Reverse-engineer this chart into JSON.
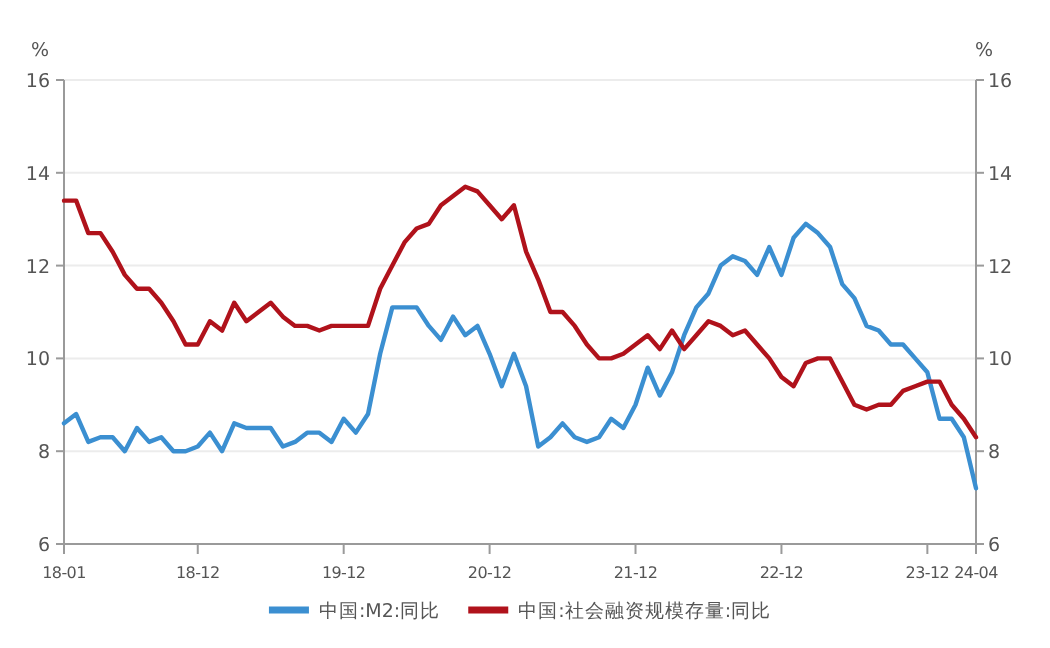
{
  "chart_data": {
    "type": "line",
    "ylabel": "%",
    "y2label": "%",
    "categories": [
      "18-01",
      null,
      null,
      null,
      null,
      null,
      null,
      null,
      null,
      null,
      null,
      "18-12",
      null,
      null,
      null,
      null,
      null,
      null,
      null,
      null,
      null,
      null,
      null,
      "19-12",
      null,
      null,
      null,
      null,
      null,
      null,
      null,
      null,
      null,
      null,
      null,
      "20-12",
      null,
      null,
      null,
      null,
      null,
      null,
      null,
      null,
      null,
      null,
      null,
      "21-12",
      null,
      null,
      null,
      null,
      null,
      null,
      null,
      null,
      null,
      null,
      null,
      "22-12",
      null,
      null,
      null,
      null,
      null,
      null,
      null,
      null,
      null,
      null,
      null,
      "23-12",
      null,
      null,
      null,
      "24-04"
    ],
    "series": [
      {
        "name": "中国:M2:同比",
        "color": "#3b8fd1",
        "values": [
          8.6,
          8.8,
          8.2,
          8.3,
          8.3,
          8.0,
          8.5,
          8.2,
          8.3,
          8.0,
          8.0,
          8.1,
          8.4,
          8.0,
          8.6,
          8.5,
          8.5,
          8.5,
          8.1,
          8.2,
          8.4,
          8.4,
          8.2,
          8.7,
          8.4,
          8.8,
          10.1,
          11.1,
          11.1,
          11.1,
          10.7,
          10.4,
          10.9,
          10.5,
          10.7,
          10.1,
          9.4,
          10.1,
          9.4,
          8.1,
          8.3,
          8.6,
          8.3,
          8.2,
          8.3,
          8.7,
          8.5,
          9.0,
          9.8,
          9.2,
          9.7,
          10.5,
          11.1,
          11.4,
          12.0,
          12.2,
          12.1,
          11.8,
          12.4,
          11.8,
          12.6,
          12.9,
          12.7,
          12.4,
          11.6,
          11.3,
          10.7,
          10.6,
          10.3,
          10.3,
          10.0,
          9.7,
          8.7,
          8.7,
          8.3,
          7.2
        ]
      },
      {
        "name": "中国:社会融资规模存量:同比",
        "color": "#b0121b",
        "values": [
          13.4,
          13.4,
          12.7,
          12.7,
          12.3,
          11.8,
          11.5,
          11.5,
          11.2,
          10.8,
          10.3,
          10.3,
          10.8,
          10.6,
          11.2,
          10.8,
          11.0,
          11.2,
          10.9,
          10.7,
          10.7,
          10.6,
          10.7,
          10.7,
          10.7,
          10.7,
          11.5,
          12.0,
          12.5,
          12.8,
          12.9,
          13.3,
          13.5,
          13.7,
          13.6,
          13.3,
          13.0,
          13.3,
          12.3,
          11.7,
          11.0,
          11.0,
          10.7,
          10.3,
          10.0,
          10.0,
          10.1,
          10.3,
          10.5,
          10.2,
          10.6,
          10.2,
          10.5,
          10.8,
          10.7,
          10.5,
          10.6,
          10.3,
          10.0,
          9.6,
          9.4,
          9.9,
          10.0,
          10.0,
          9.5,
          9.0,
          8.9,
          9.0,
          9.0,
          9.3,
          9.4,
          9.5,
          9.5,
          9.0,
          8.7,
          8.3
        ]
      }
    ],
    "ylim": [
      6,
      16
    ],
    "yticks": [
      6,
      8,
      10,
      12,
      14,
      16
    ],
    "y2lim": [
      6,
      16
    ],
    "y2ticks": [
      6,
      8,
      10,
      12,
      14,
      16
    ],
    "grid": "y",
    "legend": "bottom",
    "marker": "none",
    "line_style": "solid"
  }
}
